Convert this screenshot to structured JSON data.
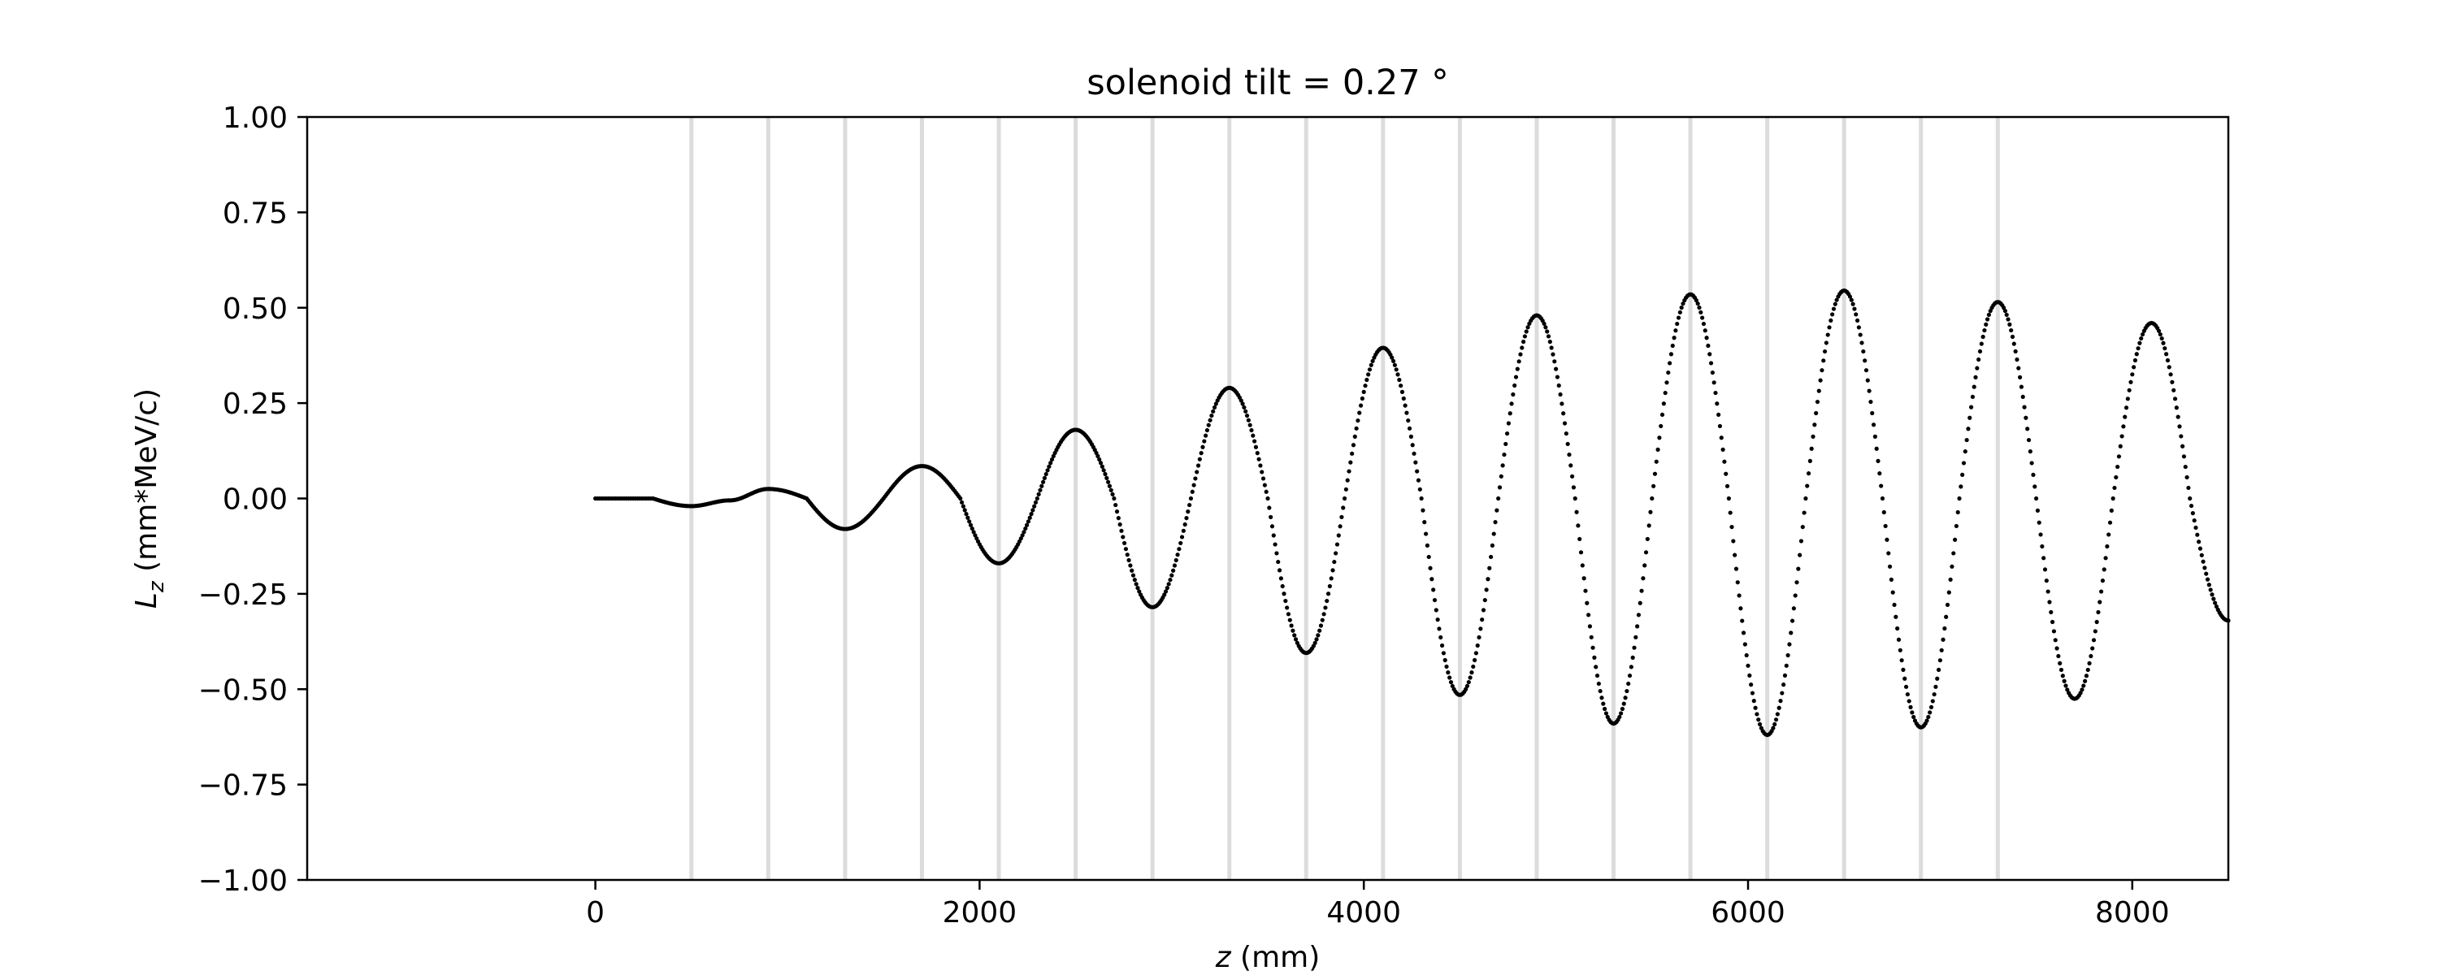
{
  "chart_data": {
    "type": "scatter",
    "title": "solenoid tilt = 0.27 °",
    "xlabel": {
      "symbol": "z",
      "unit": " (mm)"
    },
    "ylabel": {
      "symbol": "L",
      "subscript": "z",
      "unit": " (mm*MeV/c)"
    },
    "xlim": [
      -1500,
      8500
    ],
    "ylim": [
      -1.0,
      1.0
    ],
    "xticks": [
      0,
      2000,
      4000,
      6000,
      8000
    ],
    "xtick_labels": [
      "0",
      "2000",
      "4000",
      "6000",
      "8000"
    ],
    "yticks": [
      -1.0,
      -0.75,
      -0.5,
      -0.25,
      0.0,
      0.25,
      0.5,
      0.75,
      1.0
    ],
    "ytick_labels": [
      "−1.00",
      "−0.75",
      "−0.50",
      "−0.25",
      "0.00",
      "0.25",
      "0.50",
      "0.75",
      "1.00"
    ],
    "grid": false,
    "legend": "none",
    "vertical_markers": [
      500,
      900,
      1300,
      1700,
      2100,
      2500,
      2900,
      3300,
      3700,
      4100,
      4500,
      4900,
      5300,
      5700,
      6100,
      6500,
      6900,
      7300
    ],
    "vertical_marker_color": "#dcdcdc",
    "series_color": "#000000",
    "series": [
      {
        "x": [
          0,
          300,
          500,
          700,
          900,
          1100,
          1300,
          1500,
          1700,
          1900,
          2100,
          2300,
          2500,
          2700,
          2900,
          3100,
          3300,
          3500,
          3700,
          3900,
          4100,
          4300,
          4500,
          4700,
          4900,
          5100,
          5300,
          5500,
          5700,
          5900,
          6100,
          6300,
          6500,
          6700,
          6900,
          7100,
          7300,
          7500,
          7700,
          7900,
          8100,
          8300,
          8500
        ],
        "y": [
          0.0,
          0.0,
          -0.02,
          -0.005,
          0.025,
          0.0,
          -0.08,
          0.0,
          0.085,
          0.0,
          -0.17,
          0.0,
          0.18,
          0.0,
          -0.285,
          0.0,
          0.29,
          0.0,
          -0.405,
          0.0,
          0.395,
          0.0,
          -0.515,
          0.0,
          0.48,
          0.0,
          -0.59,
          0.0,
          0.535,
          0.0,
          -0.62,
          0.0,
          0.545,
          0.0,
          -0.6,
          0.0,
          0.515,
          0.0,
          -0.525,
          0.0,
          0.46,
          0.0,
          -0.32
        ]
      }
    ]
  }
}
